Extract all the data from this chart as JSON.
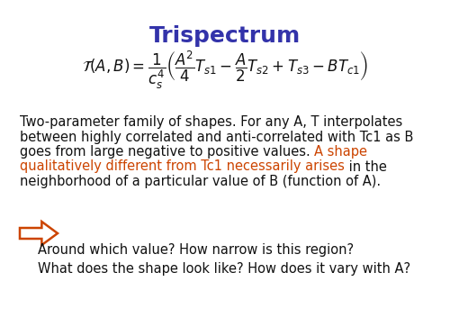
{
  "title": "Trispectrum",
  "title_color": "#3333AA",
  "title_fontsize": 18,
  "formula": "$\\mathcal{T}(A,B) = \\dfrac{1}{c_s^4}\\left(\\dfrac{A^2}{4}T_{s1} - \\dfrac{A}{2}T_{s2} + T_{s3} - BT_{c1}\\right)$",
  "formula_fontsize": 12,
  "body_fontsize": 10.5,
  "body_color_black": "#111111",
  "body_color_orange": "#CC4400",
  "arrow_color": "#CC4400",
  "question_text": "Around which value? How narrow is this region?\nWhat does the shape look like? How does it vary with A?",
  "question_fontsize": 10.5,
  "question_color": "#111111",
  "background_color": "#FFFFFF",
  "line1": "Two-parameter family of shapes. For any A, T interpolates",
  "line2": "between highly correlated and anti-correlated with Tc1 as B",
  "line3_black": "goes from large negative to positive values. ",
  "line3_orange": "A shape",
  "line4_orange": "qualitatively different from Tc1 necessarily arises",
  "line4_black": " in the",
  "line5": "neighborhood of a particular value of B (function of A)."
}
